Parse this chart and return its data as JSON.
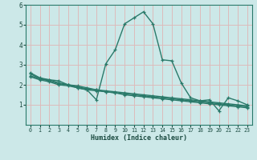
{
  "xlabel": "Humidex (Indice chaleur)",
  "xlim": [
    -0.5,
    23.5
  ],
  "ylim": [
    0,
    6
  ],
  "xticks": [
    0,
    1,
    2,
    3,
    4,
    5,
    6,
    7,
    8,
    9,
    10,
    11,
    12,
    13,
    14,
    15,
    16,
    17,
    18,
    19,
    20,
    21,
    22,
    23
  ],
  "yticks": [
    1,
    2,
    3,
    4,
    5,
    6
  ],
  "background_color": "#cce8e8",
  "grid_color": "#ddbbbb",
  "line_color": "#2a7a6a",
  "line1_y": [
    2.6,
    2.35,
    2.25,
    2.2,
    2.0,
    1.85,
    1.75,
    1.25,
    3.05,
    3.75,
    5.05,
    5.35,
    5.65,
    5.05,
    3.25,
    3.2,
    2.1,
    1.35,
    1.2,
    1.25,
    0.7,
    1.35,
    1.2,
    1.0
  ],
  "line2_y": [
    2.55,
    2.3,
    2.25,
    2.1,
    2.0,
    1.95,
    1.85,
    1.75,
    1.65,
    1.6,
    1.5,
    1.45,
    1.4,
    1.35,
    1.3,
    1.25,
    1.2,
    1.15,
    1.1,
    1.05,
    1.0,
    0.95,
    0.9,
    0.85
  ],
  "line3_y": [
    2.45,
    2.3,
    2.2,
    2.05,
    2.0,
    1.9,
    1.8,
    1.75,
    1.7,
    1.65,
    1.6,
    1.55,
    1.5,
    1.45,
    1.4,
    1.35,
    1.3,
    1.25,
    1.2,
    1.15,
    1.1,
    1.05,
    1.0,
    0.95
  ],
  "line4_y": [
    2.4,
    2.25,
    2.15,
    2.0,
    1.95,
    1.85,
    1.75,
    1.7,
    1.65,
    1.6,
    1.55,
    1.5,
    1.45,
    1.4,
    1.35,
    1.3,
    1.25,
    1.2,
    1.15,
    1.1,
    1.05,
    1.0,
    0.95,
    0.9
  ]
}
